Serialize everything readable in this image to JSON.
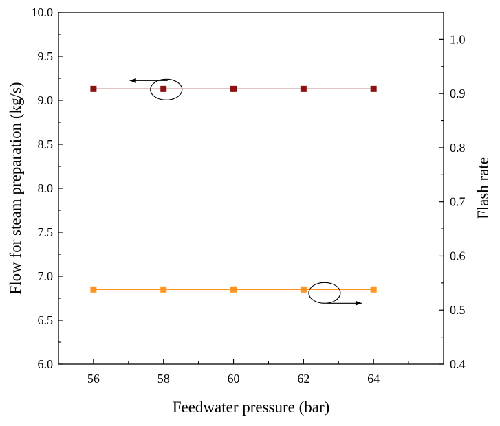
{
  "chart_data": {
    "type": "line",
    "xlabel": "Feedwater pressure (bar)",
    "ylabel": "Flow for steam preparation (kg/s)",
    "y2label": "Flash rate",
    "x": [
      56,
      58,
      60,
      62,
      64
    ],
    "xlim": [
      55,
      66
    ],
    "ylim": [
      6.0,
      10.0
    ],
    "y2lim": [
      0.4,
      1.05
    ],
    "xticks": [
      "56",
      "58",
      "60",
      "62",
      "64"
    ],
    "yticks": [
      "6.0",
      "6.5",
      "7.0",
      "7.5",
      "8.0",
      "8.5",
      "9.0",
      "9.5",
      "10.0"
    ],
    "y2ticks": [
      "0.4",
      "0.5",
      "0.6",
      "0.7",
      "0.8",
      "0.9",
      "1.0"
    ],
    "grid": false,
    "legend": "none",
    "series": [
      {
        "axis": "left",
        "color": "#8b1010",
        "marker": "square",
        "values": [
          9.13,
          9.13,
          9.13,
          9.13,
          9.13
        ]
      },
      {
        "axis": "right",
        "color": "#ff9422",
        "marker": "square",
        "values": [
          0.538,
          0.538,
          0.538,
          0.538,
          0.538
        ]
      }
    ],
    "annotations": [
      {
        "type": "ellipse-arrow",
        "series": 0,
        "at_x": 58,
        "arrow_direction": "left"
      },
      {
        "type": "ellipse-arrow",
        "series": 1,
        "at_x": 62.6,
        "arrow_direction": "right"
      }
    ]
  }
}
